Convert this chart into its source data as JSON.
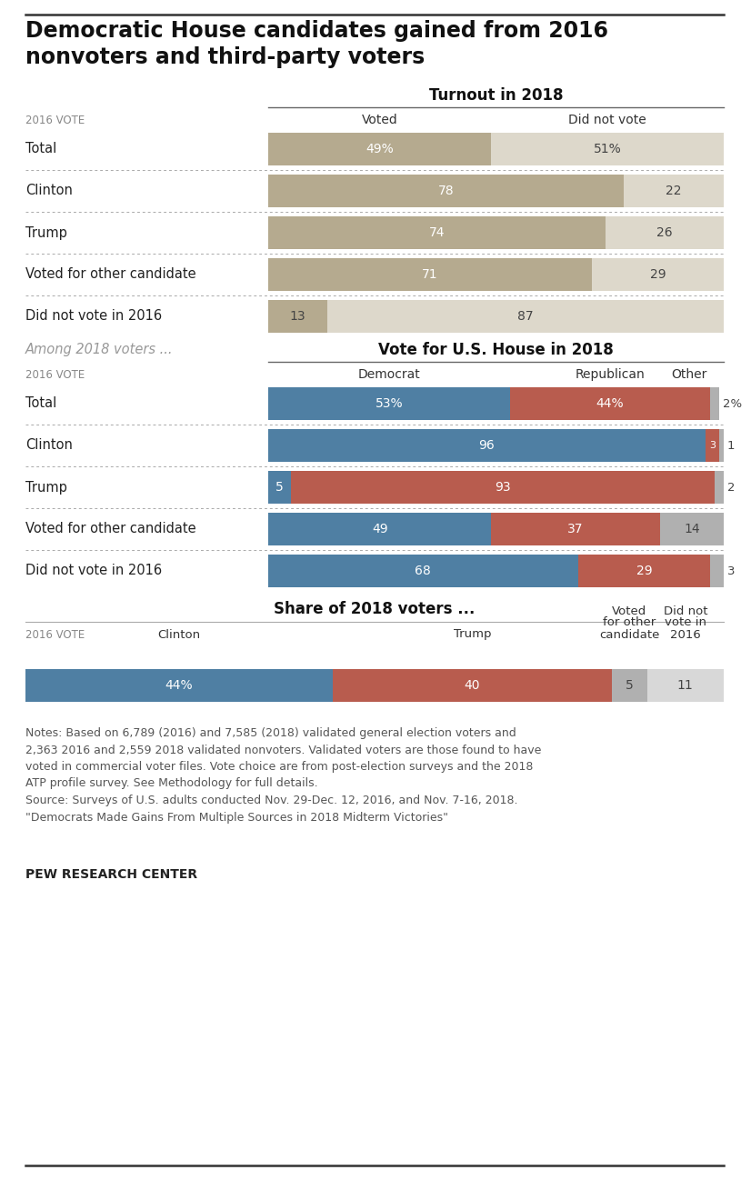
{
  "title": "Democratic House candidates gained from 2016\nnonvoters and third-party voters",
  "bg_color": "#ffffff",
  "section1_title": "Turnout in 2018",
  "section1_col1": "Voted",
  "section1_col2": "Did not vote",
  "section1_row_label": "2016 VOTE",
  "section1_rows": [
    "Total",
    "Clinton",
    "Trump",
    "Voted for other candidate",
    "Did not vote in 2016"
  ],
  "section1_voted": [
    49,
    78,
    74,
    71,
    13
  ],
  "section1_didnotvote": [
    51,
    22,
    26,
    29,
    87
  ],
  "section1_voted_labels": [
    "49%",
    "78",
    "74",
    "71",
    "13"
  ],
  "section1_didnotvote_labels": [
    "51%",
    "22",
    "26",
    "29",
    "87"
  ],
  "color_voted": "#b5aa8f",
  "color_didnotvote": "#ddd8cb",
  "section2_subtitle": "Among 2018 voters ...",
  "section2_title": "Vote for U.S. House in 2018",
  "section2_col1": "Democrat",
  "section2_col2": "Republican",
  "section2_col3": "Other",
  "section2_row_label": "2016 VOTE",
  "section2_rows": [
    "Total",
    "Clinton",
    "Trump",
    "Voted for other candidate",
    "Did not vote in 2016"
  ],
  "section2_dem": [
    53,
    96,
    5,
    49,
    68
  ],
  "section2_rep": [
    44,
    3,
    93,
    37,
    29
  ],
  "section2_other": [
    2,
    1,
    2,
    14,
    3
  ],
  "section2_dem_labels": [
    "53%",
    "96",
    "5",
    "49",
    "68"
  ],
  "section2_rep_labels": [
    "44%",
    "3",
    "93",
    "37",
    "29"
  ],
  "section2_other_labels": [
    "2%",
    "1",
    "2",
    "14",
    "3"
  ],
  "color_dem": "#4f7fa3",
  "color_rep": "#b85c4e",
  "color_other": "#b0b0b0",
  "section3_title": "Share of 2018 voters ...",
  "section3_col_labels": [
    "Clinton",
    "Trump",
    "Voted\nfor other\ncandidate",
    "Did not\nvote in\n2016"
  ],
  "section3_row_label": "2016 VOTE",
  "section3_values": [
    44,
    40,
    5,
    11
  ],
  "section3_labels": [
    "44%",
    "40",
    "5",
    "11"
  ],
  "section3_colors": [
    "#4f7fa3",
    "#b85c4e",
    "#b0b0b0",
    "#d8d8d8"
  ],
  "notes": "Notes: Based on 6,789 (2016) and 7,585 (2018) validated general election voters and\n2,363 2016 and 2,559 2018 validated nonvoters. Validated voters are those found to have\nvoted in commercial voter files. Vote choice are from post-election surveys and the 2018\nATP profile survey. See Methodology for full details.\nSource: Surveys of U.S. adults conducted Nov. 29-Dec. 12, 2016, and Nov. 7-16, 2018.\n\"Democrats Made Gains From Multiple Sources in 2018 Midterm Victories\"",
  "footer": "PEW RESEARCH CENTER"
}
